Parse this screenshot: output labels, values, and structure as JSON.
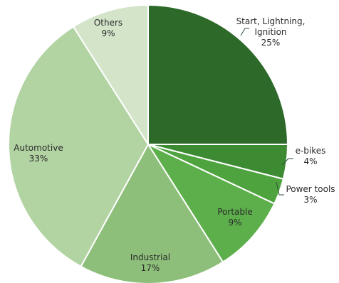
{
  "chart_data": {
    "type": "pie",
    "title": "",
    "slices": [
      {
        "label_lines": [
          "Start, Lightning,",
          "Ignition"
        ],
        "pct_label": "25%",
        "value": 25,
        "color": "#2d6a2a"
      },
      {
        "label_lines": [
          "e-bikes"
        ],
        "pct_label": "4%",
        "value": 4,
        "color": "#3c8b33"
      },
      {
        "label_lines": [
          "Power tools"
        ],
        "pct_label": "3%",
        "value": 3,
        "color": "#4ea33f"
      },
      {
        "label_lines": [
          "Portable"
        ],
        "pct_label": "9%",
        "value": 9,
        "color": "#5daf4b"
      },
      {
        "label_lines": [
          "Industrial"
        ],
        "pct_label": "17%",
        "value": 17,
        "color": "#8dbf7a"
      },
      {
        "label_lines": [
          "Automotive"
        ],
        "pct_label": "33%",
        "value": 33,
        "color": "#b2d3a2"
      },
      {
        "label_lines": [
          "Others"
        ],
        "pct_label": "9%",
        "value": 9,
        "color": "#d3e4c9"
      }
    ],
    "legend": "none",
    "label_placement": "mixed-inside-outside"
  }
}
